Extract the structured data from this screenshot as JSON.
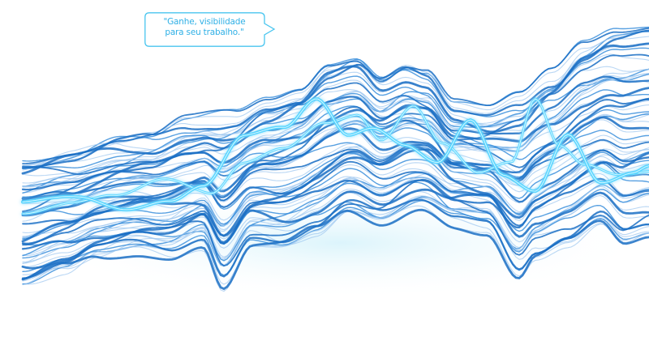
{
  "speech_bubble": {
    "line_1": "\"Ganhe, visibilidade",
    "line_2": "para seu trabalho.\"",
    "border_color": "#49c5ef",
    "text_color": "#2fb0e6"
  },
  "artwork": {
    "name": "flowing-wave-lines",
    "colors": {
      "deep_blue": "#1a6fc4",
      "mid_blue": "#3b8fdc",
      "light_blue": "#9cc6ef",
      "cyan_glow": "#4fd4ff",
      "haze": "#d8f3fb"
    }
  }
}
